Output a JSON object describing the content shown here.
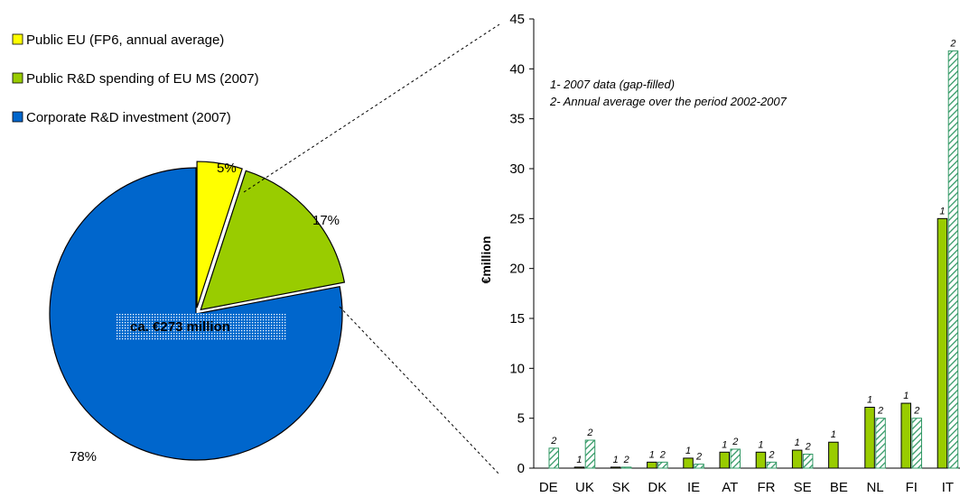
{
  "chart_data": [
    {
      "type": "pie",
      "title": "",
      "center_label": "ca. €273 million",
      "slices": [
        {
          "label": "Public EU (FP6, annual average)",
          "value": 5,
          "value_label": "5%",
          "color": "#ffff00"
        },
        {
          "label": "Public R&D spending of EU MS (2007)",
          "value": 17,
          "value_label": "17%",
          "color": "#99cc00"
        },
        {
          "label": "Corporate R&D investment (2007)",
          "value": 78,
          "value_label": "78%",
          "color": "#0066cc"
        }
      ],
      "legend_position": "top-left"
    },
    {
      "type": "bar",
      "title": "",
      "xlabel": "",
      "ylabel": "€million",
      "ylim": [
        0,
        45
      ],
      "yticks": [
        0,
        5,
        10,
        15,
        20,
        25,
        30,
        35,
        40,
        45
      ],
      "grid": false,
      "categories": [
        "DE",
        "UK",
        "SK",
        "DK",
        "IE",
        "AT",
        "FR",
        "SE",
        "BE",
        "NL",
        "FI",
        "IT"
      ],
      "series": [
        {
          "color": "#99cc00",
          "values": [
            null,
            0.1,
            0.1,
            0.6,
            1.0,
            1.6,
            1.6,
            1.8,
            2.6,
            6.1,
            6.5,
            25.0
          ],
          "note_marker": "1"
        },
        {
          "color": "#ffffff",
          "hatch_color": "#339966",
          "values": [
            2.0,
            2.8,
            0.1,
            0.6,
            0.4,
            1.9,
            0.6,
            1.4,
            null,
            5.0,
            5.0,
            41.8
          ],
          "note_marker": "2"
        }
      ],
      "notes": [
        "1- 2007 data (gap-filled)",
        "2- Annual average over the period 2002-2007"
      ]
    }
  ]
}
